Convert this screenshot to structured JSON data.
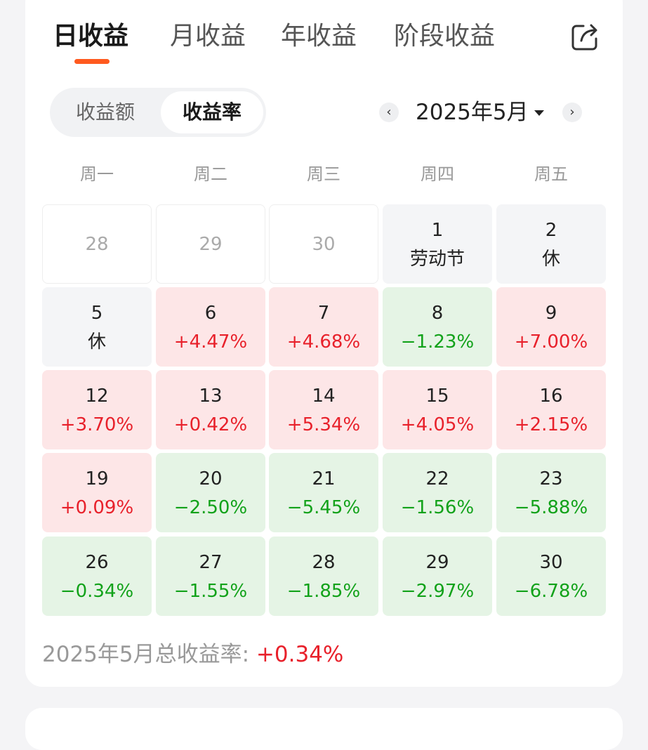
{
  "tabs": [
    {
      "label": "日收益",
      "active": true
    },
    {
      "label": "月收益",
      "active": false
    },
    {
      "label": "年收益",
      "active": false
    },
    {
      "label": "阶段收益",
      "active": false
    }
  ],
  "share_icon": "share-icon",
  "toggle": {
    "left": "收益额",
    "right": "收益率",
    "selected": "收益率"
  },
  "month_selector": {
    "label": "2025年5月",
    "prev": "‹",
    "next": "›"
  },
  "weekdays": [
    "周一",
    "周二",
    "周三",
    "周四",
    "周五"
  ],
  "calendar": [
    [
      {
        "day": "28",
        "sub": "",
        "status": "outside"
      },
      {
        "day": "29",
        "sub": "",
        "status": "outside"
      },
      {
        "day": "30",
        "sub": "",
        "status": "outside"
      },
      {
        "day": "1",
        "sub": "劳动节",
        "status": "holiday"
      },
      {
        "day": "2",
        "sub": "休",
        "status": "holiday"
      }
    ],
    [
      {
        "day": "5",
        "sub": "休",
        "status": "holiday"
      },
      {
        "day": "6",
        "sub": "+4.47%",
        "status": "up"
      },
      {
        "day": "7",
        "sub": "+4.68%",
        "status": "up"
      },
      {
        "day": "8",
        "sub": "−1.23%",
        "status": "down"
      },
      {
        "day": "9",
        "sub": "+7.00%",
        "status": "up"
      }
    ],
    [
      {
        "day": "12",
        "sub": "+3.70%",
        "status": "up"
      },
      {
        "day": "13",
        "sub": "+0.42%",
        "status": "up"
      },
      {
        "day": "14",
        "sub": "+5.34%",
        "status": "up"
      },
      {
        "day": "15",
        "sub": "+4.05%",
        "status": "up"
      },
      {
        "day": "16",
        "sub": "+2.15%",
        "status": "up"
      }
    ],
    [
      {
        "day": "19",
        "sub": "+0.09%",
        "status": "up"
      },
      {
        "day": "20",
        "sub": "−2.50%",
        "status": "down"
      },
      {
        "day": "21",
        "sub": "−5.45%",
        "status": "down"
      },
      {
        "day": "22",
        "sub": "−1.56%",
        "status": "down"
      },
      {
        "day": "23",
        "sub": "−5.88%",
        "status": "down"
      }
    ],
    [
      {
        "day": "26",
        "sub": "−0.34%",
        "status": "down"
      },
      {
        "day": "27",
        "sub": "−1.55%",
        "status": "down"
      },
      {
        "day": "28",
        "sub": "−1.85%",
        "status": "down"
      },
      {
        "day": "29",
        "sub": "−2.97%",
        "status": "down"
      },
      {
        "day": "30",
        "sub": "−6.78%",
        "status": "down"
      }
    ]
  ],
  "summary": {
    "label": "2025年5月总收益率: ",
    "value": "+0.34%"
  },
  "colors": {
    "accent": "#ff5a1f",
    "up": "#e8212b",
    "down": "#12a21a",
    "up_bg": "#fde6e7",
    "down_bg": "#e5f4e5"
  }
}
